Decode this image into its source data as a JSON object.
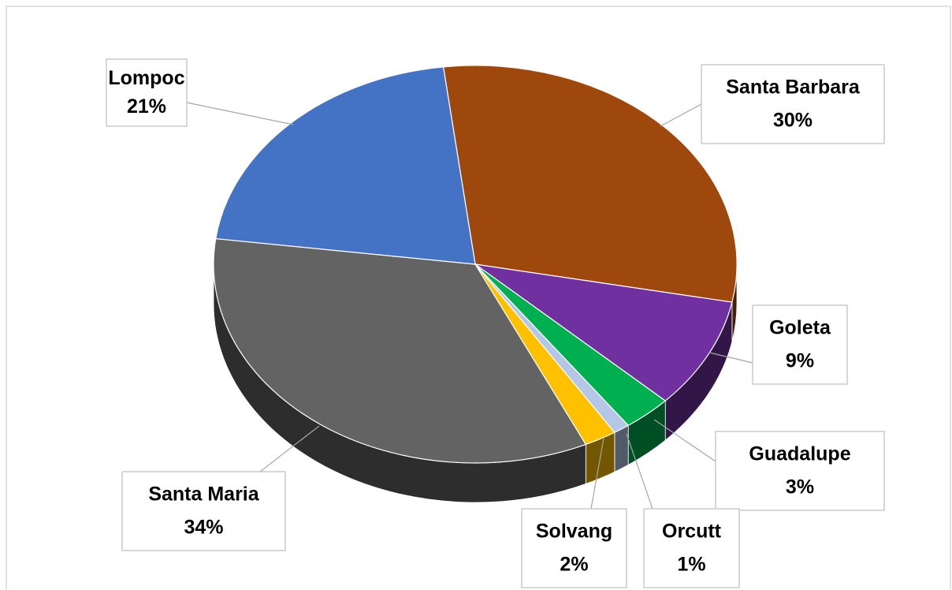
{
  "chart_data": {
    "type": "pie",
    "categories": [
      "Santa Barbara",
      "Goleta",
      "Guadalupe",
      "Orcutt",
      "Solvang",
      "Santa Maria",
      "Lompoc"
    ],
    "values": [
      30,
      9,
      3,
      1,
      2,
      34,
      21
    ],
    "value_labels": [
      "30%",
      "9%",
      "3%",
      "1%",
      "2%",
      "34%",
      "21%"
    ],
    "colors": [
      "#9e480e",
      "#7030a0",
      "#00b050",
      "#b4c7e7",
      "#ffc000",
      "#636363",
      "#4472c4"
    ]
  }
}
